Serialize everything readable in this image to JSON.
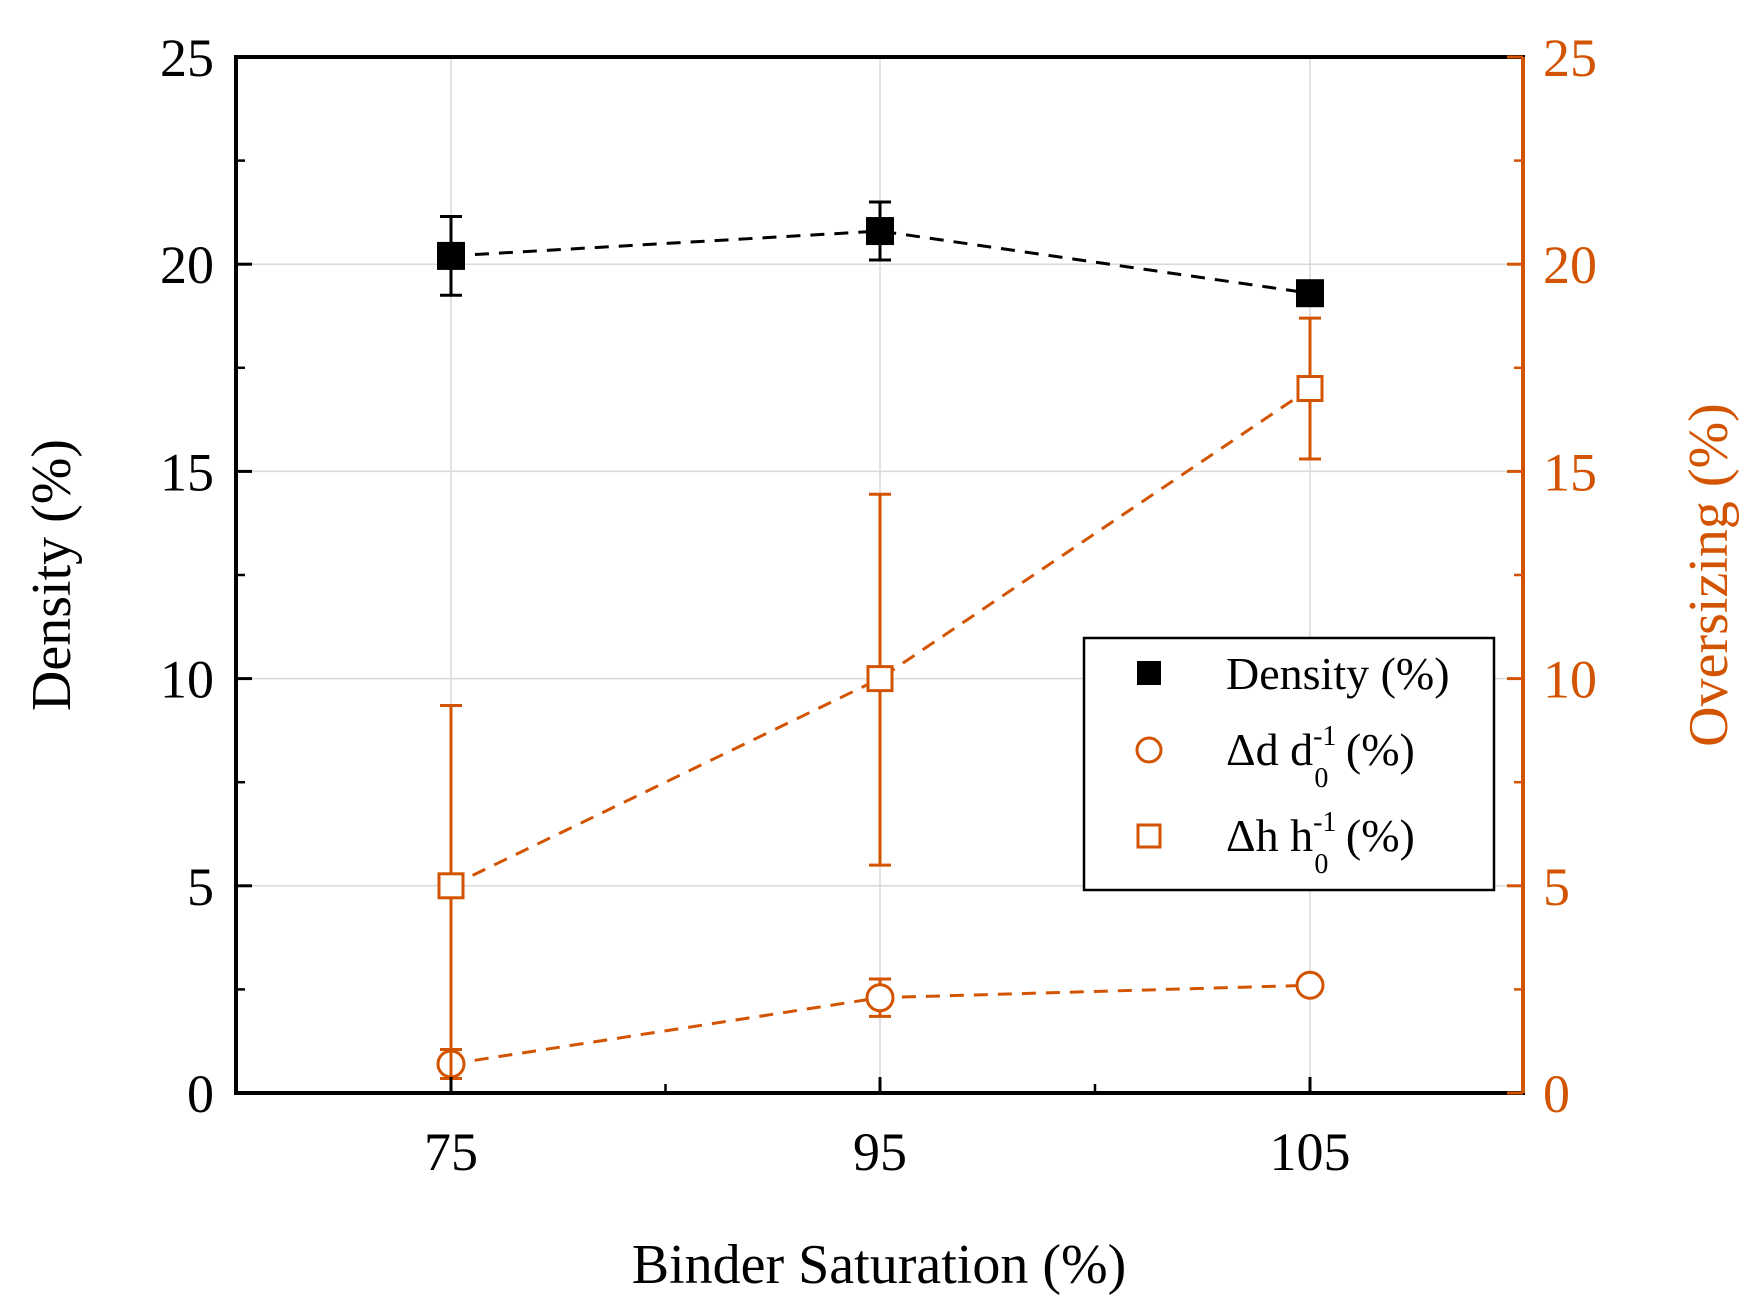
{
  "chart_data": {
    "type": "line",
    "categories": [
      "75",
      "95",
      "105"
    ],
    "xlabel": "Binder Saturation (%)",
    "ylabel_left": "Density (%)",
    "ylabel_right": "Oversizing (%)",
    "ylim_left": [
      0,
      25
    ],
    "ylim_right": [
      0,
      25
    ],
    "yticks": [
      0,
      5,
      10,
      15,
      20,
      25
    ],
    "grid": true,
    "legend_position": "center-right",
    "colors": {
      "black": "#000000",
      "orange": "#d35400",
      "grid": "#d9d9d9"
    },
    "series": [
      {
        "name": "Density (%)",
        "axis": "left",
        "marker": "filled-square",
        "color": "#000000",
        "values": [
          20.2,
          20.8,
          19.3
        ],
        "err_low": [
          0.95,
          0.7,
          0.0
        ],
        "err_high": [
          0.95,
          0.7,
          0.0
        ]
      },
      {
        "name": "Δd d0-1 (%)",
        "axis": "right",
        "marker": "open-circle",
        "color": "#d35400",
        "values": [
          0.7,
          2.3,
          2.6
        ],
        "err_low": [
          0.35,
          0.45,
          0.2
        ],
        "err_high": [
          0.35,
          0.45,
          0.2
        ]
      },
      {
        "name": "Δh h0-1 (%)",
        "axis": "right",
        "marker": "open-square",
        "color": "#d35400",
        "values": [
          5.0,
          10.0,
          17.0
        ],
        "err_low": [
          5.0,
          4.5,
          1.7
        ],
        "err_high": [
          4.35,
          4.45,
          1.7
        ]
      }
    ],
    "legend": {
      "density": "Density (%)",
      "dd_delta": "Δd d",
      "dd_sub": "0",
      "dd_sup": "-1",
      "dd_tail": " (%)",
      "dh_delta": "Δh h",
      "dh_sub": "0",
      "dh_sup": "-1",
      "dh_tail": " (%)"
    }
  }
}
